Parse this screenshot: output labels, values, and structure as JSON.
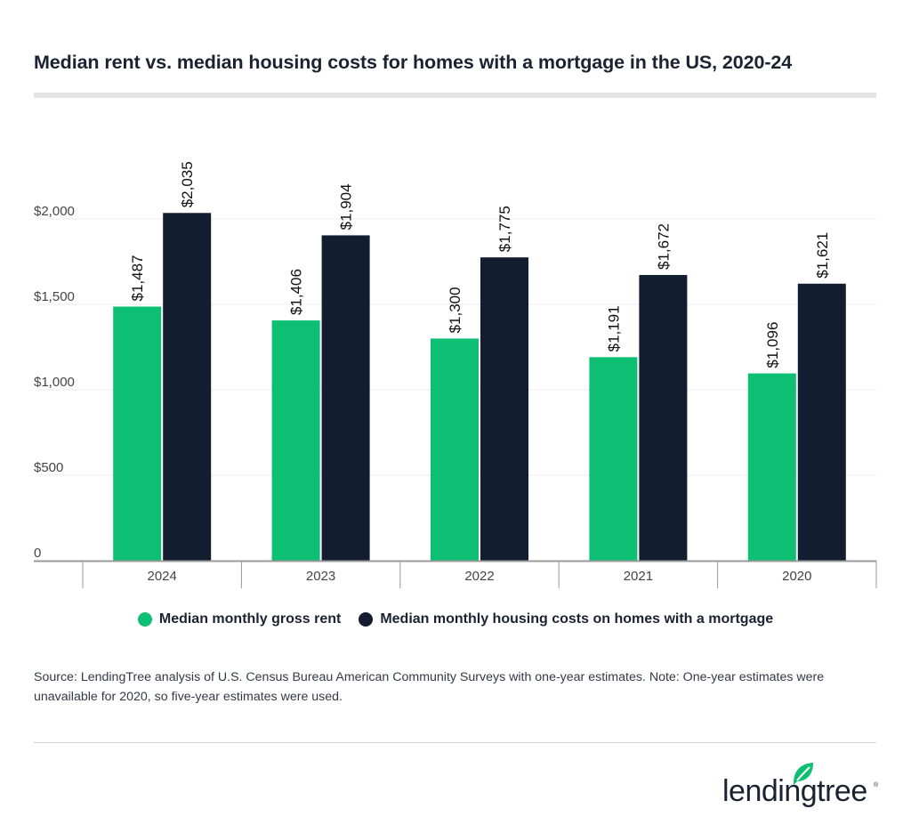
{
  "title": "Median rent vs. median housing costs for homes with a mortgage in the US, 2020-24",
  "chart_data": {
    "type": "bar",
    "title": "Median rent vs. median housing costs for homes with a mortgage in the US, 2020-24",
    "categories": [
      "2024",
      "2023",
      "2022",
      "2021",
      "2020"
    ],
    "series": [
      {
        "name": "Median monthly gross rent",
        "color": "#0cbf73",
        "values": [
          1487,
          1406,
          1300,
          1191,
          1096
        ]
      },
      {
        "name": "Median monthly housing costs on homes with a mortgage",
        "color": "#121e30",
        "values": [
          2035,
          1904,
          1775,
          1672,
          1621
        ]
      }
    ],
    "data_labels": [
      [
        "$1,487",
        "$1,406",
        "$1,300",
        "$1,191",
        "$1,096"
      ],
      [
        "$2,035",
        "$1,904",
        "$1,775",
        "$1,672",
        "$1,621"
      ]
    ],
    "yticks": [
      0,
      500,
      1000,
      1500,
      2000
    ],
    "ytick_labels": [
      "0",
      "$500",
      "$1,000",
      "$1,500",
      "$2,000"
    ],
    "ylim": [
      0,
      2000
    ],
    "xlabel": "",
    "ylabel": "",
    "grid": true,
    "legend": "bottom"
  },
  "source": "Source: LendingTree analysis of U.S. Census Bureau American Community Surveys with one-year estimates. Note: One-year estimates were unavailable for 2020, so five-year estimates were used.",
  "logo": {
    "text": "lendingtree",
    "color": "#1b2332",
    "leaf_color": "#0cbf73"
  }
}
